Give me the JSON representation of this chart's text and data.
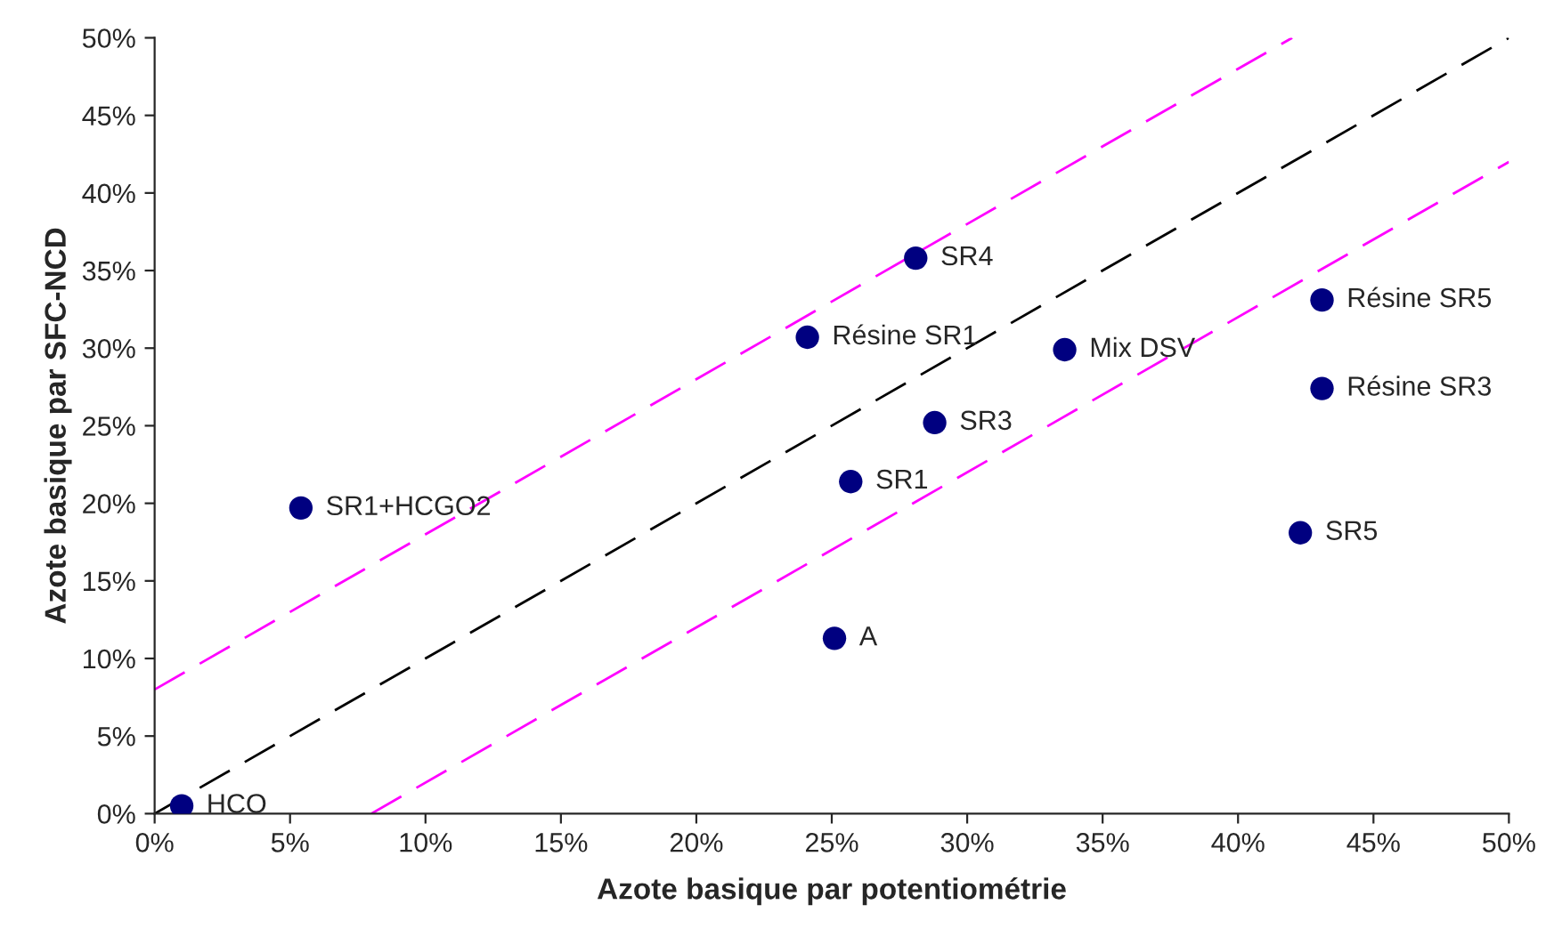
{
  "chart_data": {
    "type": "scatter",
    "xlabel": "Azote basique par potentiométrie",
    "ylabel": "Azote basique par SFC-NCD",
    "series": [
      {
        "color": "#000080",
        "marker": "circle",
        "x": [
          1.0,
          5.4,
          25.1,
          25.7,
          24.1,
          28.1,
          28.8,
          33.6,
          43.1,
          43.1,
          42.3
        ],
        "values": [
          0.5,
          19.7,
          11.3,
          21.4,
          30.7,
          35.8,
          25.2,
          29.9,
          33.1,
          27.4,
          18.1
        ]
      },
      {
        "type": "line",
        "color": "#000000",
        "line_style": "dashed",
        "marker": "none",
        "x": [
          0,
          50
        ],
        "values": [
          0,
          50
        ]
      },
      {
        "type": "line",
        "color": "#ff00ff",
        "line_style": "dashed",
        "marker": "none",
        "x": [
          0,
          42
        ],
        "values": [
          8,
          50
        ]
      },
      {
        "type": "line",
        "color": "#ff00ff",
        "line_style": "dashed",
        "marker": "none",
        "x": [
          8,
          50
        ],
        "values": [
          0,
          42
        ]
      }
    ],
    "annotations": [
      {
        "text": "HCO",
        "x": 1.0,
        "y": 0.5
      },
      {
        "text": "SR1+HCGO2",
        "x": 5.4,
        "y": 19.7
      },
      {
        "text": "A",
        "x": 25.1,
        "y": 11.3
      },
      {
        "text": "SR1",
        "x": 25.7,
        "y": 21.4
      },
      {
        "text": "Résine SR1",
        "x": 24.1,
        "y": 30.7
      },
      {
        "text": "SR4",
        "x": 28.1,
        "y": 35.8
      },
      {
        "text": "SR3",
        "x": 28.8,
        "y": 25.2
      },
      {
        "text": "Mix DSV",
        "x": 33.6,
        "y": 29.9
      },
      {
        "text": "Résine SR5",
        "x": 43.1,
        "y": 33.1
      },
      {
        "text": "Résine SR3",
        "x": 43.1,
        "y": 27.4
      },
      {
        "text": "SR5",
        "x": 42.3,
        "y": 18.1
      }
    ],
    "xlim": [
      0,
      50
    ],
    "ylim": [
      0,
      50
    ],
    "xticks": [
      {
        "value": 0,
        "label": "0%"
      },
      {
        "value": 5,
        "label": "5%"
      },
      {
        "value": 10,
        "label": "10%"
      },
      {
        "value": 15,
        "label": "15%"
      },
      {
        "value": 20,
        "label": "20%"
      },
      {
        "value": 25,
        "label": "25%"
      },
      {
        "value": 30,
        "label": "30%"
      },
      {
        "value": 35,
        "label": "35%"
      },
      {
        "value": 40,
        "label": "40%"
      },
      {
        "value": 45,
        "label": "45%"
      },
      {
        "value": 50,
        "label": "50%"
      }
    ],
    "yticks": [
      {
        "value": 0,
        "label": "0%"
      },
      {
        "value": 5,
        "label": "5%"
      },
      {
        "value": 10,
        "label": "10%"
      },
      {
        "value": 15,
        "label": "15%"
      },
      {
        "value": 20,
        "label": "20%"
      },
      {
        "value": 25,
        "label": "25%"
      },
      {
        "value": 30,
        "label": "30%"
      },
      {
        "value": 35,
        "label": "35%"
      },
      {
        "value": 40,
        "label": "40%"
      },
      {
        "value": 45,
        "label": "45%"
      },
      {
        "value": 50,
        "label": "50%"
      }
    ],
    "grid": false,
    "legend": false
  }
}
